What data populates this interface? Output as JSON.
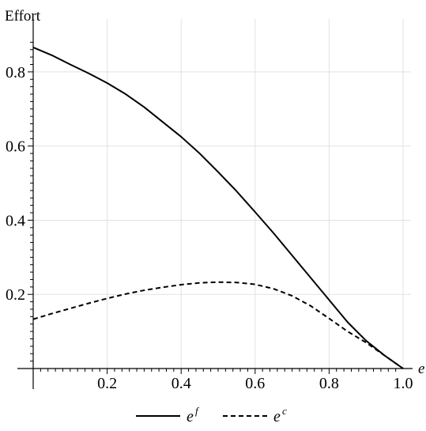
{
  "chart_data": {
    "type": "line",
    "title": "",
    "xlabel": "e",
    "ylabel": "Effort",
    "xlim": [
      0,
      1.0
    ],
    "ylim": [
      0,
      0.9
    ],
    "grid": true,
    "legend_position": "bottom",
    "x_ticks": [
      {
        "value": 0.2,
        "label": "0.2"
      },
      {
        "value": 0.4,
        "label": "0.4"
      },
      {
        "value": 0.6,
        "label": "0.6"
      },
      {
        "value": 0.8,
        "label": "0.8"
      },
      {
        "value": 1.0,
        "label": "1.0"
      }
    ],
    "y_ticks": [
      {
        "value": 0.2,
        "label": "0.2"
      },
      {
        "value": 0.4,
        "label": "0.4"
      },
      {
        "value": 0.6,
        "label": "0.6"
      },
      {
        "value": 0.8,
        "label": "0.8"
      }
    ],
    "series": [
      {
        "name": "e",
        "name_superscript": "f",
        "style": "solid",
        "color": "#000000",
        "x": [
          0,
          0.05,
          0.1,
          0.15,
          0.2,
          0.25,
          0.3,
          0.35,
          0.4,
          0.45,
          0.5,
          0.55,
          0.6,
          0.65,
          0.7,
          0.75,
          0.8,
          0.85,
          0.9,
          0.95,
          1.0
        ],
        "y": [
          0.866,
          0.845,
          0.82,
          0.796,
          0.77,
          0.74,
          0.705,
          0.665,
          0.625,
          0.58,
          0.53,
          0.478,
          0.422,
          0.365,
          0.305,
          0.245,
          0.185,
          0.125,
          0.075,
          0.035,
          0.0
        ]
      },
      {
        "name": "e",
        "name_superscript": "c",
        "style": "dashed",
        "color": "#000000",
        "x": [
          0,
          0.05,
          0.1,
          0.15,
          0.2,
          0.25,
          0.3,
          0.35,
          0.4,
          0.45,
          0.5,
          0.55,
          0.6,
          0.65,
          0.7,
          0.75,
          0.8,
          0.85,
          0.9,
          0.95,
          1.0
        ],
        "y": [
          0.133,
          0.148,
          0.162,
          0.176,
          0.189,
          0.201,
          0.211,
          0.219,
          0.226,
          0.231,
          0.233,
          0.232,
          0.227,
          0.215,
          0.196,
          0.169,
          0.135,
          0.1,
          0.07,
          0.035,
          0.0
        ]
      }
    ]
  }
}
